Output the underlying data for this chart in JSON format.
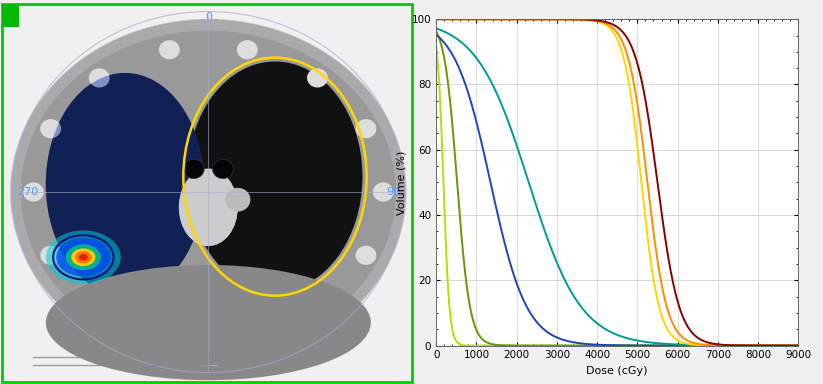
{
  "xlabel": "Dose (cGy)",
  "ylabel": "Volume (%)",
  "xlim": [
    0,
    9000
  ],
  "ylim": [
    0,
    100
  ],
  "xticks": [
    0,
    1000,
    2000,
    3000,
    4000,
    5000,
    6000,
    7000,
    8000,
    9000
  ],
  "yticks": [
    0,
    20,
    40,
    60,
    80,
    100
  ],
  "curves": [
    {
      "name": "lime",
      "color": "#bbdd00",
      "inflection": 180,
      "steepness": 75
    },
    {
      "name": "olive",
      "color": "#669900",
      "inflection": 520,
      "steepness": 160
    },
    {
      "name": "blue",
      "color": "#2244bb",
      "inflection": 1350,
      "steepness": 450
    },
    {
      "name": "teal",
      "color": "#009999",
      "inflection": 2300,
      "steepness": 650
    },
    {
      "name": "yellow",
      "color": "#FFD700",
      "inflection": 5100,
      "steepness": 220
    },
    {
      "name": "orange",
      "color": "#FF8C00",
      "inflection": 5250,
      "steepness": 240
    },
    {
      "name": "dark_red",
      "color": "#880000",
      "inflection": 5500,
      "steepness": 270
    }
  ],
  "grid_color": "#cccccc",
  "figure_bg": "#f0f0f0",
  "dvh_bg": "#ffffff",
  "ct_bg": "#000000",
  "label_color": "#4499ff",
  "green_border": "#00cc00",
  "yellow_outline": "#FFD700",
  "circle_color": "#aaaacc",
  "crosshair_color": "#aaaacc"
}
